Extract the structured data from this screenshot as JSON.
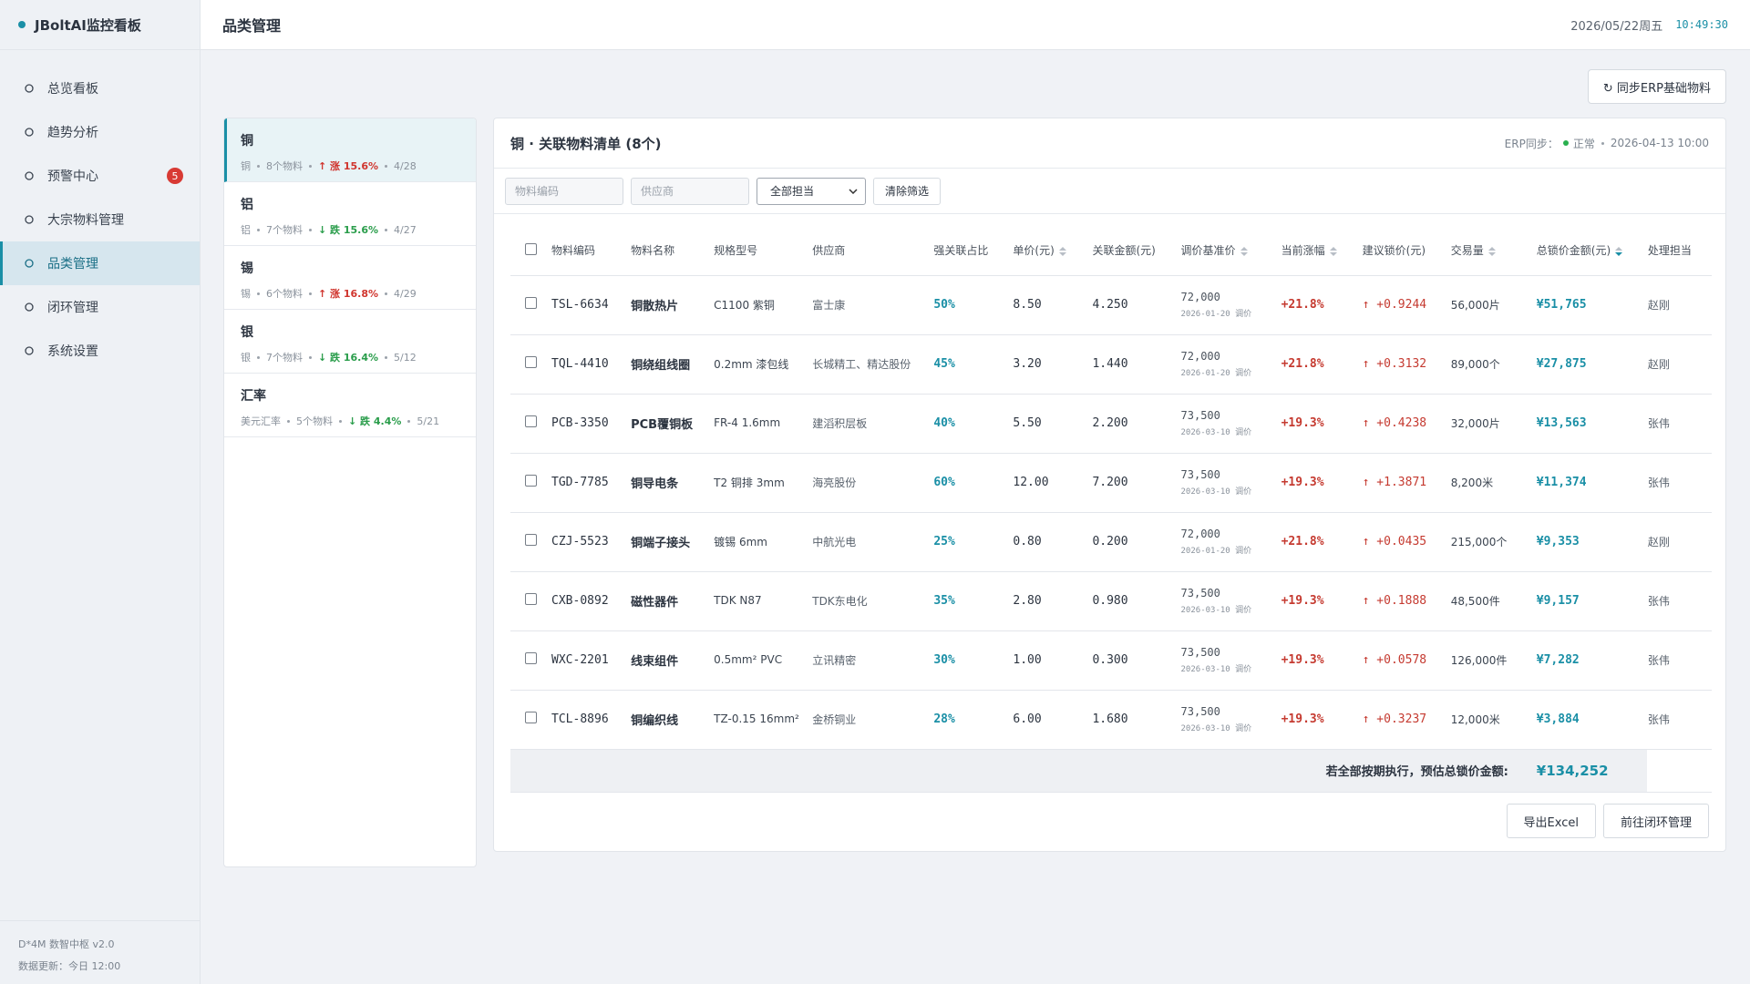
{
  "sidebar": {
    "brand": "JBoltAI监控看板",
    "nav": [
      {
        "label": "总览看板"
      },
      {
        "label": "趋势分析"
      },
      {
        "label": "预警中心",
        "badge": 5
      },
      {
        "label": "大宗物料管理"
      },
      {
        "label": "品类管理",
        "active": true
      },
      {
        "label": "闭环管理"
      },
      {
        "label": "系统设置"
      }
    ],
    "footer": [
      "D*4M 数智中枢 v2.0",
      "数据更新：今日 12:00"
    ]
  },
  "header": {
    "title": "品类管理",
    "date": "2026/05/22周五",
    "time": "10:49:30"
  },
  "sync_button": "↻ 同步ERP基础物料",
  "categories": [
    {
      "name": "铜",
      "sub": "铜",
      "count": "8个物料",
      "trend": "↑ 涨 15.6%",
      "direction": "up",
      "date": "4/28",
      "active": true
    },
    {
      "name": "铝",
      "sub": "铝",
      "count": "7个物料",
      "trend": "↓ 跌 15.6%",
      "direction": "down",
      "date": "4/27"
    },
    {
      "name": "锡",
      "sub": "锡",
      "count": "6个物料",
      "trend": "↑ 涨 16.8%",
      "direction": "up",
      "date": "4/29"
    },
    {
      "name": "银",
      "sub": "银",
      "count": "7个物料",
      "trend": "↓ 跌 16.4%",
      "direction": "down",
      "date": "5/12"
    },
    {
      "name": "汇率",
      "sub": "美元汇率",
      "count": "5个物料",
      "trend": "↓ 跌 4.4%",
      "direction": "down",
      "date": "5/21"
    }
  ],
  "panel": {
    "title": "铜 · 关联物料清单 (8个)",
    "erp_label": "ERP同步：",
    "erp_status": "正常",
    "erp_time": "2026-04-13 10:00",
    "filters": {
      "code_placeholder": "物料编码",
      "supplier_placeholder": "供应商",
      "owner_select": "全部担当",
      "clear": "清除筛选"
    },
    "columns": [
      {
        "label": "物料编码"
      },
      {
        "label": "物料名称"
      },
      {
        "label": "规格型号"
      },
      {
        "label": "供应商"
      },
      {
        "label": "强关联占比"
      },
      {
        "label": "单价(元)",
        "sortable": true
      },
      {
        "label": "关联金额(元)"
      },
      {
        "label": "调价基准价",
        "sortable": true
      },
      {
        "label": "当前涨幅",
        "sortable": true
      },
      {
        "label": "建议锁价(元)"
      },
      {
        "label": "交易量",
        "sortable": true
      },
      {
        "label": "总锁价金额(元)",
        "sortable": true,
        "sorted": "desc"
      },
      {
        "label": "处理担当"
      }
    ],
    "rows": [
      [
        "TSL-6634",
        "铜散热片",
        "C1100 紫铜",
        "富士康",
        "50%",
        "8.50",
        "4.250",
        "72,000",
        "2026-01-20 调价",
        "+21.8%",
        "↑ +0.9244",
        "56,000片",
        "¥51,765",
        "赵刚"
      ],
      [
        "TQL-4410",
        "铜绕组线圈",
        "0.2mm 漆包线",
        "长城精工、精达股份",
        "45%",
        "3.20",
        "1.440",
        "72,000",
        "2026-01-20 调价",
        "+21.8%",
        "↑ +0.3132",
        "89,000个",
        "¥27,875",
        "赵刚"
      ],
      [
        "PCB-3350",
        "PCB覆铜板",
        "FR-4 1.6mm",
        "建滔积层板",
        "40%",
        "5.50",
        "2.200",
        "73,500",
        "2026-03-10 调价",
        "+19.3%",
        "↑ +0.4238",
        "32,000片",
        "¥13,563",
        "张伟"
      ],
      [
        "TGD-7785",
        "铜导电条",
        "T2 铜排 3mm",
        "海亮股份",
        "60%",
        "12.00",
        "7.200",
        "73,500",
        "2026-03-10 调价",
        "+19.3%",
        "↑ +1.3871",
        "8,200米",
        "¥11,374",
        "张伟"
      ],
      [
        "CZJ-5523",
        "铜端子接头",
        "镀锡 6mm",
        "中航光电",
        "25%",
        "0.80",
        "0.200",
        "72,000",
        "2026-01-20 调价",
        "+21.8%",
        "↑ +0.0435",
        "215,000个",
        "¥9,353",
        "赵刚"
      ],
      [
        "CXB-0892",
        "磁性器件",
        "TDK N87",
        "TDK东电化",
        "35%",
        "2.80",
        "0.980",
        "73,500",
        "2026-03-10 调价",
        "+19.3%",
        "↑ +0.1888",
        "48,500件",
        "¥9,157",
        "张伟"
      ],
      [
        "WXC-2201",
        "线束组件",
        "0.5mm² PVC",
        "立讯精密",
        "30%",
        "1.00",
        "0.300",
        "73,500",
        "2026-03-10 调价",
        "+19.3%",
        "↑ +0.0578",
        "126,000件",
        "¥7,282",
        "张伟"
      ],
      [
        "TCL-8896",
        "铜编织线",
        "TZ-0.15 16mm²",
        "金桥铜业",
        "28%",
        "6.00",
        "1.680",
        "73,500",
        "2026-03-10 调价",
        "+19.3%",
        "↑ +0.3237",
        "12,000米",
        "¥3,884",
        "张伟"
      ]
    ],
    "total_label": "若全部按期执行，预估总锁价金额:",
    "total_value": "¥134,252",
    "buttons": [
      "导出Excel",
      "前往闭环管理"
    ]
  }
}
